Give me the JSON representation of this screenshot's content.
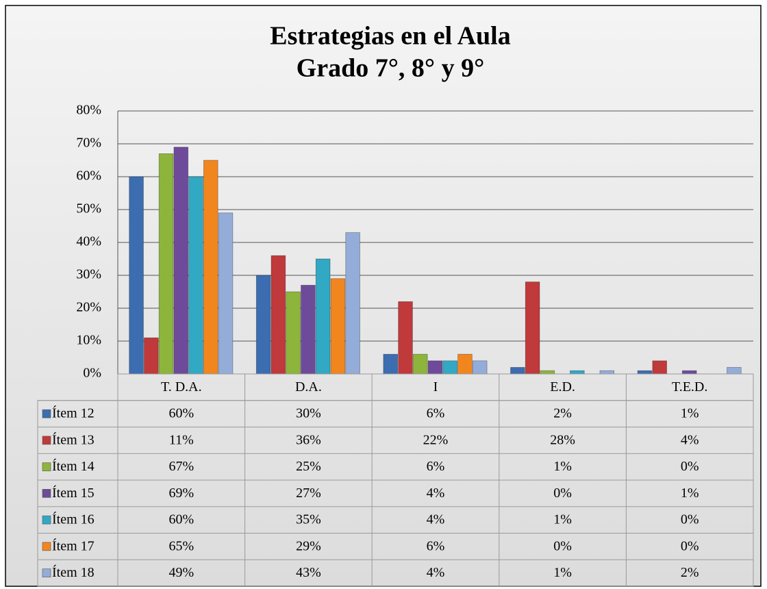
{
  "chart_data": {
    "type": "bar",
    "title": "Estrategias en el Aula",
    "subtitle": "Grado 7°, 8° y 9°",
    "categories": [
      "T. D.A.",
      "D.A.",
      "I",
      "E.D.",
      "T.E.D."
    ],
    "series": [
      {
        "name": "Ítem 12",
        "color": "#3c6db0",
        "values": [
          60,
          30,
          6,
          2,
          1
        ],
        "value_labels": [
          "60%",
          "30%",
          "6%",
          "2%",
          "1%"
        ]
      },
      {
        "name": "Ítem 13",
        "color": "#c0393b",
        "values": [
          11,
          36,
          22,
          28,
          4
        ],
        "value_labels": [
          "11%",
          "36%",
          "22%",
          "28%",
          "4%"
        ]
      },
      {
        "name": "Ítem 14",
        "color": "#8db53b",
        "values": [
          67,
          25,
          6,
          1,
          0
        ],
        "value_labels": [
          "67%",
          "25%",
          "6%",
          "1%",
          "0%"
        ]
      },
      {
        "name": "Ítem 15",
        "color": "#6e4b9a",
        "values": [
          69,
          27,
          4,
          0,
          1
        ],
        "value_labels": [
          "69%",
          "27%",
          "4%",
          "0%",
          "1%"
        ]
      },
      {
        "name": "Ítem 16",
        "color": "#31a8c4",
        "values": [
          60,
          35,
          4,
          1,
          0
        ],
        "value_labels": [
          "60%",
          "35%",
          "4%",
          "1%",
          "0%"
        ]
      },
      {
        "name": "Ítem 17",
        "color": "#f2861e",
        "values": [
          65,
          29,
          6,
          0,
          0
        ],
        "value_labels": [
          "65%",
          "29%",
          "6%",
          "0%",
          "0%"
        ]
      },
      {
        "name": "Ítem 18",
        "color": "#94acd8",
        "values": [
          49,
          43,
          4,
          1,
          2
        ],
        "value_labels": [
          "49%",
          "43%",
          "4%",
          "1%",
          "2%"
        ]
      }
    ],
    "ylim": [
      0,
      80
    ],
    "yticks": [
      {
        "value": 0,
        "label": "0%"
      },
      {
        "value": 10,
        "label": "10%"
      },
      {
        "value": 20,
        "label": "20%"
      },
      {
        "value": 30,
        "label": "30%"
      },
      {
        "value": 40,
        "label": "40%"
      },
      {
        "value": 50,
        "label": "50%"
      },
      {
        "value": 60,
        "label": "60%"
      },
      {
        "value": 70,
        "label": "70%"
      },
      {
        "value": 80,
        "label": "80%"
      }
    ],
    "grid": true
  }
}
